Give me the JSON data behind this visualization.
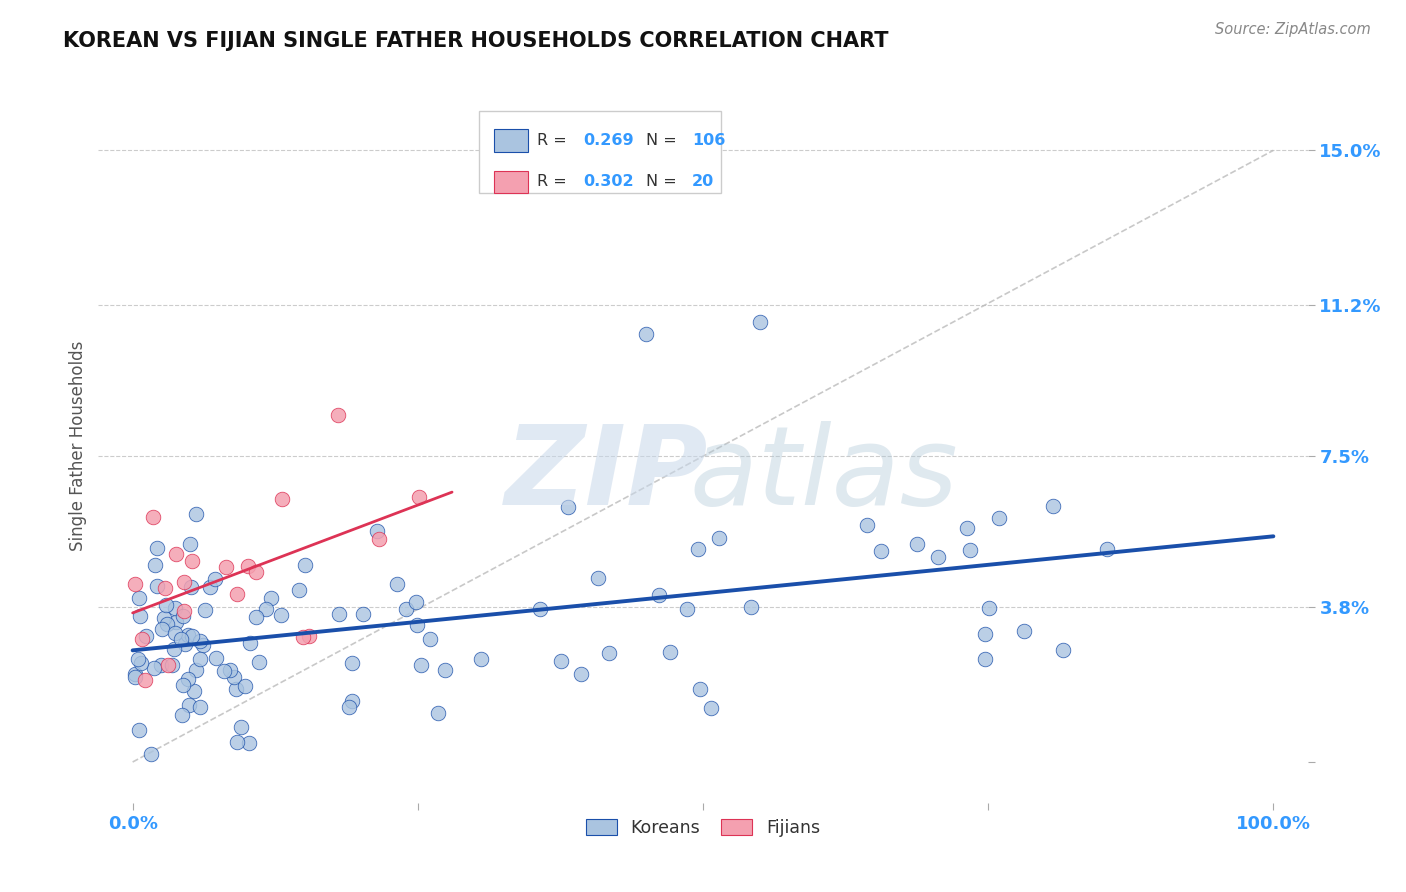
{
  "title": "KOREAN VS FIJIAN SINGLE FATHER HOUSEHOLDS CORRELATION CHART",
  "source": "Source: ZipAtlas.com",
  "ylabel": "Single Father Households",
  "korean_color": "#aac4e0",
  "fijian_color": "#f4a0b0",
  "korean_line_color": "#1a4faa",
  "fijian_line_color": "#dd3355",
  "grid_color": "#cccccc",
  "background_color": "#ffffff",
  "tick_color": "#3399ff",
  "title_color": "#111111",
  "source_color": "#888888",
  "ylabel_color": "#555555",
  "ytick_vals": [
    0.0,
    3.8,
    7.5,
    11.2,
    15.0
  ],
  "ytick_labels": [
    "",
    "3.8%",
    "7.5%",
    "11.2%",
    "15.0%"
  ],
  "xtick_vals": [
    0,
    25,
    50,
    75,
    100
  ],
  "xtick_labels": [
    "0.0%",
    "",
    "",
    "",
    "100.0%"
  ],
  "xlim": [
    -3,
    103
  ],
  "ylim": [
    -1.0,
    16.5
  ],
  "korean_R": "0.269",
  "korean_N": "106",
  "fijian_R": "0.302",
  "fijian_N": "20"
}
